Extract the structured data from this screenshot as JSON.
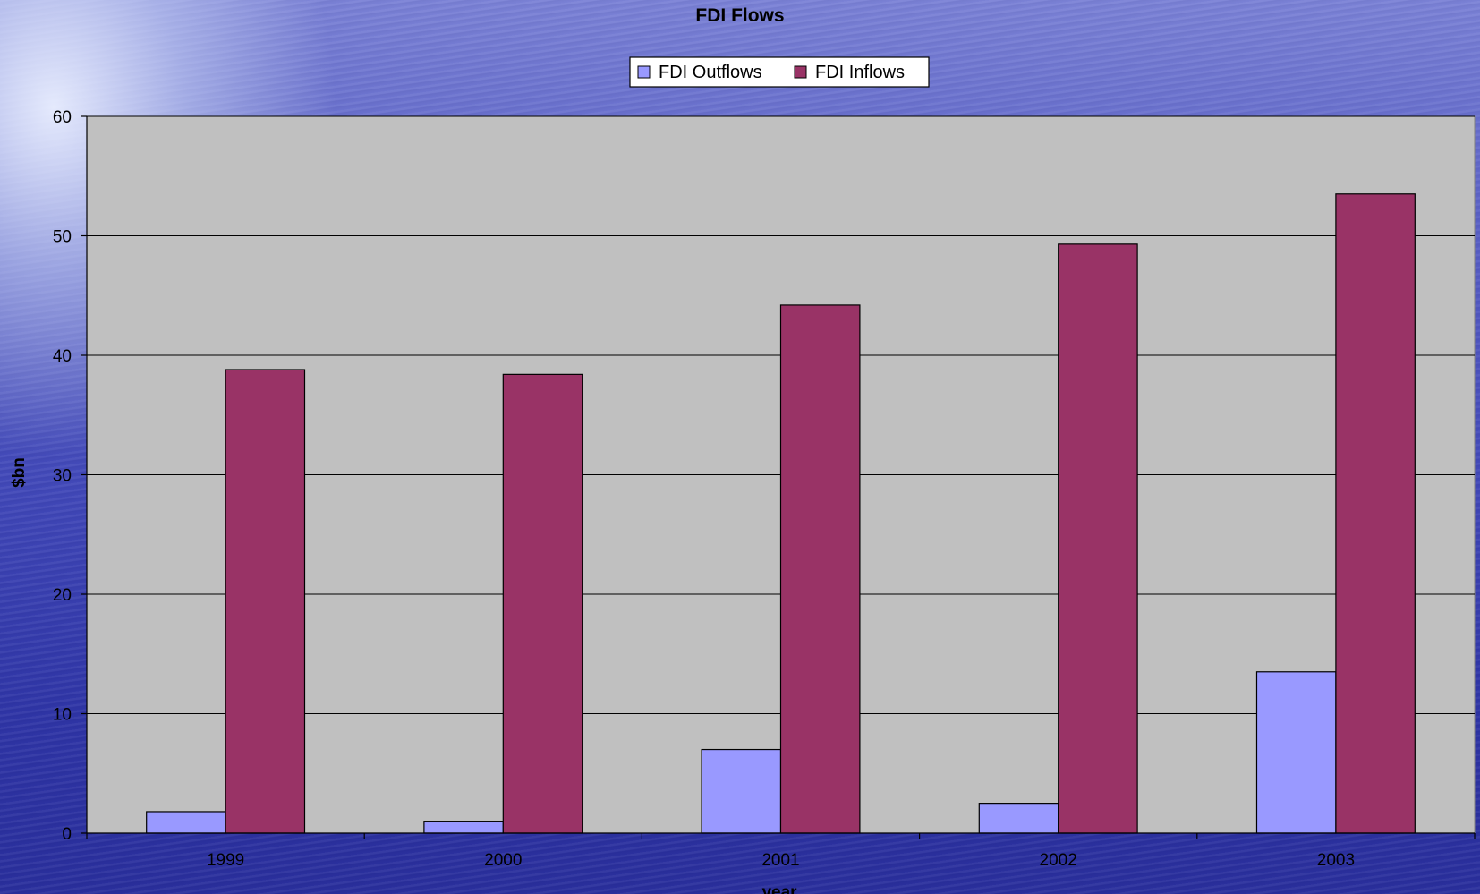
{
  "chart_data": {
    "type": "bar",
    "title": "FDI Flows",
    "xlabel": "year",
    "ylabel": "$bn",
    "categories": [
      "1999",
      "2000",
      "2001",
      "2002",
      "2003"
    ],
    "series": [
      {
        "name": "FDI Outflows",
        "values": [
          1.8,
          1.0,
          7.0,
          2.5,
          13.5
        ],
        "color": "#9999ff"
      },
      {
        "name": "FDI Inflows",
        "values": [
          38.8,
          38.4,
          44.2,
          49.3,
          53.5
        ],
        "color": "#993366"
      }
    ],
    "ylim": [
      0,
      60
    ],
    "yticks": [
      "0",
      "10",
      "20",
      "30",
      "40",
      "50",
      "60"
    ],
    "grid": true,
    "legend_position": "top",
    "plot_background": "#c0c0c0"
  }
}
